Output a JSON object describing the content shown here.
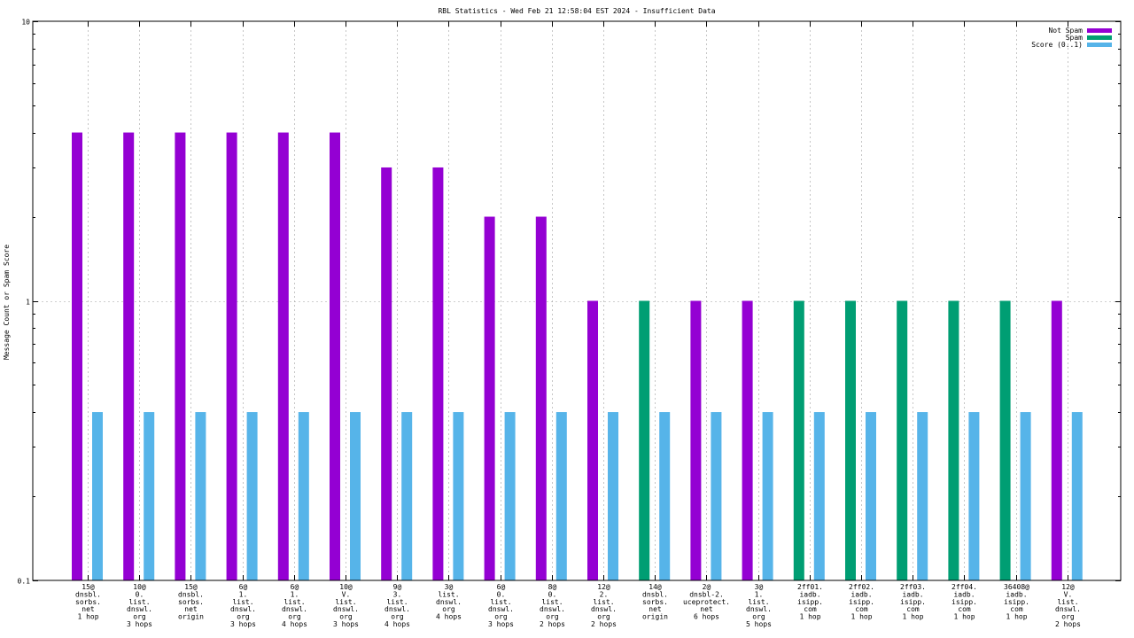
{
  "chart_data": {
    "type": "bar",
    "title": "RBL Statistics - Wed Feb 21 12:58:04 EST 2024 - Insufficient Data",
    "xlabel": "",
    "ylabel": "Message Count or Spam Score",
    "yscale": "log",
    "ylim": [
      0.1,
      10
    ],
    "ytick_labels": [
      "10",
      "1",
      "0.1"
    ],
    "grid": true,
    "legend_position": "top-right",
    "categories": [
      "15@ dnsbl. sorbs. net 1 hop",
      "10@ 0. list. dnswl. org 3 hops",
      "15@ dnsbl. sorbs. net origin",
      "6@ 1. list. dnswl. org 3 hops",
      "6@ 1. list. dnswl. org 4 hops",
      "10@ V. list. dnswl. org 3 hops",
      "9@ 3. list. dnswl. org 4 hops",
      "3@ list. dnswl. org 4 hops",
      "6@ 0. list. dnswl. org 3 hops",
      "8@ 0. list. dnswl. org 2 hops",
      "12@ 2. list. dnswl. org 2 hops",
      "14@ dnsbl. sorbs. net origin",
      "2@ dnsbl-2. uceprotect. net 6 hops",
      "3@ 1. list. dnswl. org 5 hops",
      "2ff01. iadb. isipp. com 1 hop",
      "2ff02. iadb. isipp. com 1 hop",
      "2ff03. iadb. isipp. com 1 hop",
      "2ff04. iadb. isipp. com 1 hop",
      "36408@ iadb. isipp. com 1 hop",
      "12@ V. list. dnswl. org 2 hops"
    ],
    "category_lines": [
      [
        "15@",
        "dnsbl.",
        "sorbs.",
        "net",
        "1 hop"
      ],
      [
        "10@",
        "0.",
        "list.",
        "dnswl.",
        "org",
        "3 hops"
      ],
      [
        "15@",
        "dnsbl.",
        "sorbs.",
        "net",
        "origin"
      ],
      [
        "6@",
        "1.",
        "list.",
        "dnswl.",
        "org",
        "3 hops"
      ],
      [
        "6@",
        "1.",
        "list.",
        "dnswl.",
        "org",
        "4 hops"
      ],
      [
        "10@",
        "V.",
        "list.",
        "dnswl.",
        "org",
        "3 hops"
      ],
      [
        "9@",
        "3.",
        "list.",
        "dnswl.",
        "org",
        "4 hops"
      ],
      [
        "3@",
        "list.",
        "dnswl.",
        "org",
        "4 hops"
      ],
      [
        "6@",
        "0.",
        "list.",
        "dnswl.",
        "org",
        "3 hops"
      ],
      [
        "8@",
        "0.",
        "list.",
        "dnswl.",
        "org",
        "2 hops"
      ],
      [
        "12@",
        "2.",
        "list.",
        "dnswl.",
        "org",
        "2 hops"
      ],
      [
        "14@",
        "dnsbl.",
        "sorbs.",
        "net",
        "origin"
      ],
      [
        "2@",
        "dnsbl-2.",
        "uceprotect.",
        "net",
        "6 hops"
      ],
      [
        "3@",
        "1.",
        "list.",
        "dnswl.",
        "org",
        "5 hops"
      ],
      [
        "2ff01.",
        "iadb.",
        "isipp.",
        "com",
        "1 hop"
      ],
      [
        "2ff02.",
        "iadb.",
        "isipp.",
        "com",
        "1 hop"
      ],
      [
        "2ff03.",
        "iadb.",
        "isipp.",
        "com",
        "1 hop"
      ],
      [
        "2ff04.",
        "iadb.",
        "isipp.",
        "com",
        "1 hop"
      ],
      [
        "36408@",
        "iadb.",
        "isipp.",
        "com",
        "1 hop"
      ],
      [
        "12@",
        "V.",
        "list.",
        "dnswl.",
        "org",
        "2 hops"
      ]
    ],
    "series": [
      {
        "name": "Not Spam",
        "color": "#9400d3",
        "values": [
          4,
          4,
          4,
          4,
          4,
          4,
          3,
          3,
          2,
          2,
          1,
          0,
          1,
          1,
          0,
          0,
          0,
          0,
          0,
          1
        ]
      },
      {
        "name": "Spam",
        "color": "#009e73",
        "values": [
          0,
          0,
          0,
          0,
          0,
          0,
          0,
          0,
          0,
          0,
          0,
          1,
          0,
          0,
          1,
          1,
          1,
          1,
          1,
          0
        ]
      },
      {
        "name": "Score (0..1)",
        "color": "#56b4e9",
        "values": [
          0.4,
          0.4,
          0.4,
          0.4,
          0.4,
          0.4,
          0.4,
          0.4,
          0.4,
          0.4,
          0.4,
          0.4,
          0.4,
          0.4,
          0.4,
          0.4,
          0.4,
          0.4,
          0.4,
          0.4
        ]
      }
    ]
  }
}
